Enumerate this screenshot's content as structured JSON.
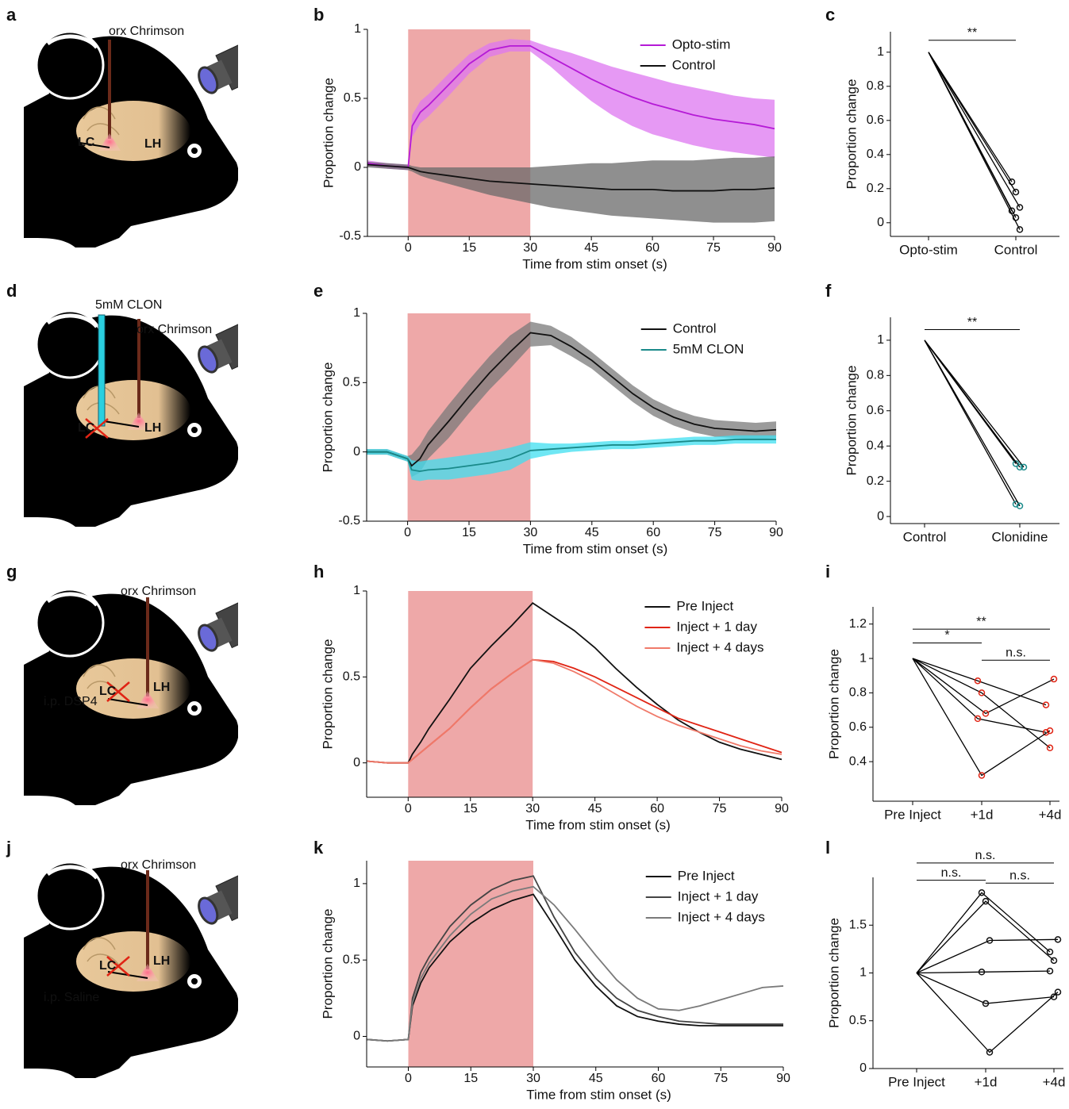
{
  "panel_labels": [
    "a",
    "b",
    "c",
    "d",
    "e",
    "f",
    "g",
    "h",
    "i",
    "j",
    "k",
    "l"
  ],
  "illustrations": [
    {
      "fiber_label": "orx Chrimson",
      "regions": [
        "LC",
        "LH"
      ]
    },
    {
      "drug": "5mM CLON",
      "fiber_label": "orx Chrimson",
      "regions": [
        "LC",
        "LH"
      ]
    },
    {
      "fiber_label": "orx Chrimson",
      "regions": [
        "LC",
        "LH"
      ],
      "treatment": "i.p. DSP4"
    },
    {
      "fiber_label": "orx Chrimson",
      "regions": [
        "LC",
        "LH"
      ],
      "treatment": "i.p. Saline"
    }
  ],
  "chart_data": [
    {
      "type": "line",
      "x_label": "Time from stim onset (s)",
      "y_label": "Proportion change",
      "xlim": [
        -10,
        90
      ],
      "ylim": [
        -0.5,
        1
      ],
      "xticks": [
        0,
        15,
        30,
        45,
        60,
        75,
        90
      ],
      "yticks": [
        -0.5,
        0,
        0.5,
        1
      ],
      "stim_window": [
        0,
        30
      ],
      "stim_color": "#eea8a8",
      "x": [
        -10,
        -5,
        0,
        1,
        3,
        5,
        10,
        15,
        20,
        25,
        30,
        35,
        40,
        45,
        50,
        55,
        60,
        65,
        70,
        75,
        80,
        85,
        90
      ],
      "series": [
        {
          "name": "Opto-stim",
          "color": "#b51ad6",
          "band_color": "#dd77f0",
          "values": [
            0.03,
            0.01,
            0,
            0.3,
            0.4,
            0.45,
            0.6,
            0.75,
            0.85,
            0.88,
            0.88,
            0.8,
            0.72,
            0.64,
            0.57,
            0.51,
            0.46,
            0.42,
            0.38,
            0.35,
            0.33,
            0.31,
            0.28
          ],
          "lower": [
            0.01,
            -0.01,
            -0.02,
            0.22,
            0.32,
            0.37,
            0.52,
            0.68,
            0.8,
            0.84,
            0.84,
            0.73,
            0.6,
            0.48,
            0.38,
            0.3,
            0.24,
            0.2,
            0.16,
            0.13,
            0.11,
            0.09,
            0.07
          ],
          "upper": [
            0.05,
            0.03,
            0.02,
            0.38,
            0.48,
            0.53,
            0.68,
            0.82,
            0.9,
            0.93,
            0.92,
            0.87,
            0.83,
            0.78,
            0.73,
            0.69,
            0.65,
            0.61,
            0.58,
            0.55,
            0.52,
            0.5,
            0.49
          ]
        },
        {
          "name": "Control",
          "color": "#111111",
          "band_color": "#6a6a6a",
          "values": [
            0.02,
            0.01,
            0,
            -0.01,
            -0.03,
            -0.04,
            -0.06,
            -0.08,
            -0.1,
            -0.11,
            -0.12,
            -0.13,
            -0.14,
            -0.15,
            -0.16,
            -0.16,
            -0.16,
            -0.17,
            -0.17,
            -0.17,
            -0.16,
            -0.16,
            -0.15
          ],
          "lower": [
            0,
            -0.01,
            -0.02,
            -0.03,
            -0.06,
            -0.08,
            -0.12,
            -0.16,
            -0.2,
            -0.23,
            -0.26,
            -0.29,
            -0.31,
            -0.33,
            -0.35,
            -0.36,
            -0.37,
            -0.38,
            -0.39,
            -0.4,
            -0.4,
            -0.4,
            -0.39
          ],
          "upper": [
            0.04,
            0.03,
            0.02,
            0.01,
            0,
            0,
            0,
            0,
            0,
            0,
            0,
            0.01,
            0.02,
            0.03,
            0.03,
            0.04,
            0.05,
            0.05,
            0.05,
            0.06,
            0.07,
            0.07,
            0.08
          ]
        }
      ]
    },
    {
      "type": "paired",
      "y_label": "Proportion change",
      "categories": [
        "Opto-stim",
        "Control"
      ],
      "ylim": [
        -0.08,
        1.12
      ],
      "yticks": [
        0,
        0.2,
        0.4,
        0.6,
        0.8,
        1
      ],
      "marker_color": "#111111",
      "series": [
        {
          "values": [
            1,
            0.24
          ]
        },
        {
          "values": [
            1,
            0.18
          ]
        },
        {
          "values": [
            1,
            0.09
          ]
        },
        {
          "values": [
            1,
            0.07
          ]
        },
        {
          "values": [
            1,
            0.03
          ]
        },
        {
          "values": [
            1,
            -0.04
          ]
        }
      ],
      "annotations": [
        {
          "label": "**",
          "from": 0,
          "to": 1,
          "y": 1.07
        }
      ]
    },
    {
      "type": "line",
      "x_label": "Time from stim onset (s)",
      "y_label": "Proportion change",
      "xlim": [
        -10,
        90
      ],
      "ylim": [
        -0.5,
        1
      ],
      "xticks": [
        0,
        15,
        30,
        45,
        60,
        75,
        90
      ],
      "yticks": [
        -0.5,
        0,
        0.5,
        1
      ],
      "stim_window": [
        0,
        30
      ],
      "stim_color": "#eea8a8",
      "x": [
        -10,
        -5,
        0,
        1,
        3,
        5,
        10,
        15,
        20,
        25,
        30,
        35,
        40,
        45,
        50,
        55,
        60,
        65,
        70,
        75,
        80,
        85,
        90
      ],
      "series": [
        {
          "name": "Control",
          "color": "#111111",
          "band_color": "#7a7a7a",
          "values": [
            0,
            0,
            -0.05,
            -0.1,
            -0.05,
            0.05,
            0.22,
            0.4,
            0.57,
            0.72,
            0.86,
            0.84,
            0.76,
            0.66,
            0.54,
            0.42,
            0.32,
            0.25,
            0.2,
            0.17,
            0.16,
            0.15,
            0.16
          ],
          "lower": [
            -0.02,
            -0.02,
            -0.07,
            -0.18,
            -0.15,
            -0.05,
            0.1,
            0.28,
            0.45,
            0.6,
            0.76,
            0.77,
            0.69,
            0.6,
            0.48,
            0.36,
            0.26,
            0.19,
            0.14,
            0.11,
            0.1,
            0.09,
            0.1
          ],
          "upper": [
            0.02,
            0.02,
            -0.03,
            -0.02,
            0.05,
            0.15,
            0.34,
            0.52,
            0.69,
            0.84,
            0.94,
            0.91,
            0.83,
            0.72,
            0.6,
            0.48,
            0.38,
            0.31,
            0.26,
            0.23,
            0.22,
            0.21,
            0.22
          ]
        },
        {
          "name": "5mM CLON",
          "color": "#1a8a8a",
          "band_color": "#3fdff0",
          "values": [
            0,
            0,
            -0.05,
            -0.13,
            -0.14,
            -0.13,
            -0.12,
            -0.1,
            -0.08,
            -0.05,
            0.01,
            0.02,
            0.03,
            0.04,
            0.05,
            0.05,
            0.06,
            0.07,
            0.08,
            0.08,
            0.09,
            0.09,
            0.09
          ],
          "lower": [
            -0.02,
            -0.02,
            -0.07,
            -0.2,
            -0.21,
            -0.2,
            -0.2,
            -0.18,
            -0.16,
            -0.13,
            -0.05,
            -0.02,
            0,
            0.01,
            0.02,
            0.02,
            0.03,
            0.04,
            0.05,
            0.05,
            0.06,
            0.06,
            0.06
          ],
          "upper": [
            0.02,
            0.02,
            -0.03,
            -0.06,
            -0.07,
            -0.06,
            -0.04,
            -0.02,
            0,
            0.03,
            0.07,
            0.06,
            0.06,
            0.07,
            0.08,
            0.08,
            0.09,
            0.1,
            0.11,
            0.11,
            0.12,
            0.12,
            0.12
          ]
        }
      ]
    },
    {
      "type": "paired",
      "y_label": "Proportion change",
      "categories": [
        "Control",
        "Clonidine"
      ],
      "ylim": [
        -0.04,
        1.13
      ],
      "yticks": [
        0,
        0.2,
        0.4,
        0.6,
        0.8,
        1
      ],
      "marker_color": "#1a8a8a",
      "series": [
        {
          "values": [
            1,
            0.3
          ]
        },
        {
          "values": [
            1,
            0.28
          ]
        },
        {
          "values": [
            1,
            0.28
          ]
        },
        {
          "values": [
            1,
            0.07
          ]
        },
        {
          "values": [
            1,
            0.06
          ]
        }
      ],
      "annotations": [
        {
          "label": "**",
          "from": 0,
          "to": 1,
          "y": 1.06
        }
      ]
    },
    {
      "type": "line",
      "x_label": "Time from stim onset (s)",
      "y_label": "Proportion change",
      "xlim": [
        -10,
        90
      ],
      "ylim": [
        -0.2,
        1
      ],
      "xticks": [
        0,
        15,
        30,
        45,
        60,
        75,
        90
      ],
      "yticks": [
        0,
        0.5,
        1
      ],
      "stim_window": [
        0,
        30
      ],
      "stim_color": "#eea8a8",
      "x": [
        -10,
        -5,
        0,
        1,
        3,
        5,
        10,
        15,
        20,
        25,
        30,
        35,
        40,
        45,
        50,
        55,
        60,
        65,
        70,
        75,
        80,
        85,
        90
      ],
      "series": [
        {
          "name": "Pre Inject",
          "color": "#111111",
          "values": [
            0.01,
            0,
            0,
            0.05,
            0.12,
            0.2,
            0.37,
            0.55,
            0.68,
            0.8,
            0.93,
            0.85,
            0.77,
            0.67,
            0.55,
            0.44,
            0.34,
            0.25,
            0.18,
            0.12,
            0.08,
            0.05,
            0.02
          ]
        },
        {
          "name": "Inject + 1 day",
          "color": "#e02414",
          "values": [
            0.01,
            0,
            0,
            0.02,
            0.06,
            0.1,
            0.2,
            0.32,
            0.43,
            0.52,
            0.6,
            0.59,
            0.55,
            0.5,
            0.44,
            0.38,
            0.32,
            0.26,
            0.22,
            0.18,
            0.14,
            0.1,
            0.06
          ]
        },
        {
          "name": "Inject + 4 days",
          "color": "#f07a6a",
          "values": [
            0.01,
            0,
            0,
            0.02,
            0.06,
            0.1,
            0.2,
            0.32,
            0.43,
            0.52,
            0.6,
            0.58,
            0.53,
            0.47,
            0.4,
            0.33,
            0.27,
            0.22,
            0.18,
            0.14,
            0.1,
            0.07,
            0.05
          ]
        }
      ]
    },
    {
      "type": "paired",
      "y_label": "Proportion change",
      "categories": [
        "Pre Inject",
        "+1d",
        "+4d"
      ],
      "ylim": [
        0.17,
        1.3
      ],
      "yticks": [
        0.4,
        0.6,
        0.8,
        1,
        1.2
      ],
      "marker_color": "#e02414",
      "series": [
        {
          "values": [
            1,
            0.87,
            0.73
          ]
        },
        {
          "values": [
            1,
            0.8,
            0.48
          ]
        },
        {
          "values": [
            1,
            0.68,
            0.88
          ]
        },
        {
          "values": [
            1,
            0.65,
            0.57
          ]
        },
        {
          "values": [
            1,
            0.32,
            0.58
          ]
        }
      ],
      "annotations": [
        {
          "label": "**",
          "from": 0,
          "to": 2,
          "y": 1.17
        },
        {
          "label": "*",
          "from": 0,
          "to": 1,
          "y": 1.09
        },
        {
          "label": "n.s.",
          "from": 1,
          "to": 2,
          "y": 0.99
        }
      ]
    },
    {
      "type": "line",
      "x_label": "Time from stim onset (s)",
      "y_label": "Proportion change",
      "xlim": [
        -10,
        90
      ],
      "ylim": [
        -0.2,
        1.15
      ],
      "xticks": [
        0,
        15,
        30,
        45,
        60,
        75,
        90
      ],
      "yticks": [
        0,
        0.5,
        1
      ],
      "stim_window": [
        0,
        30
      ],
      "stim_color": "#eea8a8",
      "x": [
        -10,
        -5,
        0,
        1,
        3,
        5,
        10,
        15,
        20,
        25,
        30,
        35,
        40,
        45,
        50,
        55,
        60,
        65,
        70,
        75,
        80,
        85,
        90
      ],
      "series": [
        {
          "name": "Pre Inject",
          "color": "#111111",
          "values": [
            -0.02,
            -0.03,
            -0.02,
            0.2,
            0.35,
            0.45,
            0.62,
            0.74,
            0.83,
            0.89,
            0.93,
            0.72,
            0.5,
            0.33,
            0.2,
            0.13,
            0.1,
            0.08,
            0.07,
            0.07,
            0.07,
            0.07,
            0.07
          ]
        },
        {
          "name": "Inject + 1 day",
          "color": "#444444",
          "values": [
            -0.02,
            -0.03,
            -0.02,
            0.25,
            0.42,
            0.52,
            0.72,
            0.86,
            0.96,
            1.02,
            1.05,
            0.78,
            0.55,
            0.38,
            0.25,
            0.17,
            0.13,
            0.1,
            0.09,
            0.08,
            0.08,
            0.08,
            0.08
          ]
        },
        {
          "name": "Inject + 4 days",
          "color": "#7a7a7a",
          "values": [
            -0.02,
            -0.03,
            -0.02,
            0.22,
            0.38,
            0.48,
            0.66,
            0.8,
            0.9,
            0.95,
            0.98,
            0.86,
            0.7,
            0.53,
            0.37,
            0.25,
            0.18,
            0.17,
            0.2,
            0.24,
            0.28,
            0.32,
            0.33
          ]
        }
      ]
    },
    {
      "type": "paired",
      "y_label": "Proportion change",
      "categories": [
        "Pre Inject",
        "+1d",
        "+4d"
      ],
      "ylim": [
        0,
        2
      ],
      "yticks": [
        0,
        0.5,
        1,
        1.5
      ],
      "marker_color": "#111111",
      "series": [
        {
          "values": [
            1,
            1.84,
            1.22
          ]
        },
        {
          "values": [
            1,
            1.75,
            1.13
          ]
        },
        {
          "values": [
            1,
            1.34,
            1.35
          ]
        },
        {
          "values": [
            1,
            1.01,
            1.02
          ]
        },
        {
          "values": [
            1,
            0.68,
            0.75
          ]
        },
        {
          "values": [
            1,
            0.17,
            0.8
          ]
        }
      ],
      "annotations": [
        {
          "label": "n.s.",
          "from": 0,
          "to": 2,
          "y": 2.15
        },
        {
          "label": "n.s.",
          "from": 0,
          "to": 1,
          "y": 1.97
        },
        {
          "label": "n.s.",
          "from": 1,
          "to": 2,
          "y": 1.94
        }
      ]
    }
  ]
}
